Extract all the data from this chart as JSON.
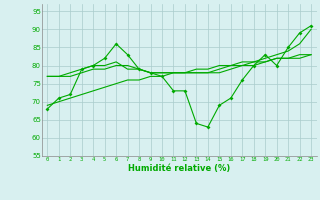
{
  "x": [
    0,
    1,
    2,
    3,
    4,
    5,
    6,
    7,
    8,
    9,
    10,
    11,
    12,
    13,
    14,
    15,
    16,
    17,
    18,
    19,
    20,
    21,
    22,
    23
  ],
  "line1": [
    68,
    71,
    72,
    79,
    80,
    82,
    86,
    83,
    79,
    78,
    77,
    73,
    73,
    64,
    63,
    69,
    71,
    76,
    80,
    83,
    80,
    85,
    89,
    91
  ],
  "line2": [
    77,
    77,
    77,
    78,
    79,
    79,
    80,
    80,
    79,
    78,
    78,
    78,
    78,
    78,
    78,
    79,
    80,
    80,
    81,
    81,
    82,
    82,
    82,
    83
  ],
  "line3": [
    69,
    70,
    71,
    72,
    73,
    74,
    75,
    76,
    76,
    77,
    77,
    78,
    78,
    79,
    79,
    80,
    80,
    81,
    81,
    82,
    83,
    84,
    86,
    90
  ],
  "line4": [
    77,
    77,
    78,
    79,
    80,
    80,
    81,
    79,
    79,
    78,
    78,
    78,
    78,
    78,
    78,
    78,
    79,
    80,
    80,
    81,
    82,
    82,
    83,
    83
  ],
  "color": "#00aa00",
  "bg_color": "#d8f0f0",
  "grid_color": "#aacccc",
  "xlabel": "Humidité relative (%)",
  "ylim": [
    55,
    97
  ],
  "yticks": [
    55,
    60,
    65,
    70,
    75,
    80,
    85,
    90,
    95
  ],
  "xlim": [
    -0.5,
    23.5
  ]
}
